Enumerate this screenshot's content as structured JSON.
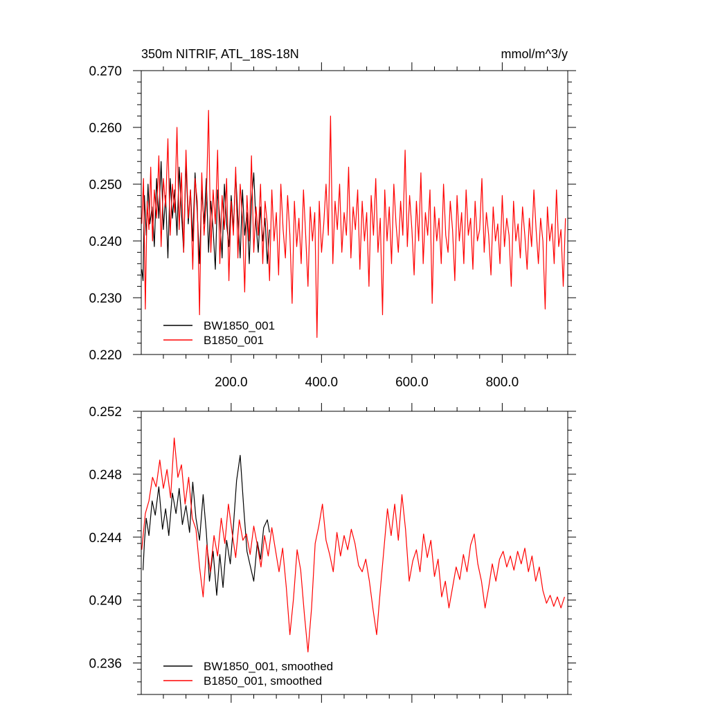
{
  "chart_data": [
    {
      "type": "line",
      "title": "350m NITRIF, ATL_18S-18N",
      "units": "mmol/m^3/y",
      "xlim": [
        1,
        945
      ],
      "ylim": [
        0.22,
        0.27
      ],
      "xticks": [
        200,
        400,
        600,
        800
      ],
      "xtick_labels": [
        "200.0",
        "400.0",
        "600.0",
        "800.0"
      ],
      "yticks": [
        0.22,
        0.23,
        0.24,
        0.25,
        0.26,
        0.27
      ],
      "ytick_labels": [
        "0.220",
        "0.230",
        "0.240",
        "0.250",
        "0.260",
        "0.270"
      ],
      "grid": false,
      "legend_position": "bottom-left",
      "series": [
        {
          "name": "BW1850_001",
          "color": "#000000",
          "x": [
            2,
            5,
            8,
            12,
            16,
            20,
            25,
            30,
            35,
            40,
            45,
            50,
            55,
            60,
            65,
            70,
            75,
            80,
            85,
            90,
            95,
            100,
            105,
            110,
            115,
            120,
            125,
            130,
            135,
            140,
            145,
            150,
            155,
            160,
            165,
            170,
            175,
            180,
            185,
            190,
            195,
            200,
            205,
            210,
            215,
            220,
            225,
            230,
            235,
            240,
            245,
            250,
            255,
            260,
            265,
            270,
            275,
            280,
            285
          ],
          "y": [
            0.235,
            0.233,
            0.248,
            0.241,
            0.25,
            0.243,
            0.246,
            0.239,
            0.251,
            0.244,
            0.254,
            0.242,
            0.248,
            0.237,
            0.251,
            0.244,
            0.249,
            0.241,
            0.253,
            0.245,
            0.238,
            0.254,
            0.243,
            0.249,
            0.24,
            0.252,
            0.245,
            0.236,
            0.249,
            0.243,
            0.251,
            0.238,
            0.247,
            0.242,
            0.235,
            0.249,
            0.244,
            0.237,
            0.25,
            0.243,
            0.239,
            0.248,
            0.242,
            0.252,
            0.244,
            0.237,
            0.249,
            0.241,
            0.245,
            0.236,
            0.247,
            0.252,
            0.243,
            0.238,
            0.246,
            0.24,
            0.244,
            0.236,
            0.242
          ]
        },
        {
          "name": "B1850_001",
          "color": "#ff0000",
          "x": [
            2,
            6,
            10,
            14,
            18,
            22,
            26,
            30,
            35,
            40,
            45,
            50,
            55,
            60,
            65,
            70,
            75,
            80,
            85,
            90,
            95,
            100,
            105,
            110,
            115,
            120,
            125,
            130,
            135,
            140,
            145,
            150,
            155,
            160,
            165,
            170,
            175,
            180,
            185,
            190,
            195,
            200,
            205,
            210,
            215,
            220,
            225,
            230,
            235,
            240,
            245,
            250,
            255,
            260,
            265,
            270,
            275,
            280,
            285,
            290,
            295,
            300,
            305,
            310,
            315,
            320,
            325,
            330,
            335,
            340,
            345,
            350,
            355,
            360,
            365,
            370,
            375,
            380,
            385,
            390,
            395,
            400,
            405,
            410,
            415,
            420,
            425,
            430,
            435,
            440,
            445,
            450,
            455,
            460,
            465,
            470,
            475,
            480,
            485,
            490,
            495,
            500,
            505,
            510,
            515,
            520,
            525,
            530,
            535,
            540,
            545,
            550,
            555,
            560,
            565,
            570,
            575,
            580,
            585,
            590,
            595,
            600,
            605,
            610,
            615,
            620,
            625,
            630,
            635,
            640,
            645,
            650,
            655,
            660,
            665,
            670,
            675,
            680,
            685,
            690,
            695,
            700,
            705,
            710,
            715,
            720,
            725,
            730,
            735,
            740,
            745,
            750,
            755,
            760,
            765,
            770,
            775,
            780,
            785,
            790,
            795,
            800,
            805,
            810,
            815,
            820,
            825,
            830,
            835,
            840,
            845,
            850,
            855,
            860,
            865,
            870,
            875,
            880,
            885,
            890,
            895,
            900,
            905,
            910,
            915,
            920,
            925,
            930,
            935,
            940
          ],
          "y": [
            0.243,
            0.251,
            0.228,
            0.247,
            0.242,
            0.253,
            0.24,
            0.249,
            0.244,
            0.255,
            0.239,
            0.251,
            0.246,
            0.258,
            0.241,
            0.25,
            0.245,
            0.26,
            0.242,
            0.252,
            0.238,
            0.256,
            0.244,
            0.249,
            0.235,
            0.251,
            0.247,
            0.227,
            0.252,
            0.241,
            0.247,
            0.263,
            0.238,
            0.249,
            0.243,
            0.256,
            0.236,
            0.248,
            0.242,
            0.251,
            0.233,
            0.247,
            0.241,
            0.253,
            0.237,
            0.25,
            0.244,
            0.231,
            0.248,
            0.24,
            0.255,
            0.238,
            0.246,
            0.241,
            0.25,
            0.236,
            0.247,
            0.243,
            0.233,
            0.249,
            0.24,
            0.245,
            0.234,
            0.25,
            0.242,
            0.237,
            0.248,
            0.241,
            0.229,
            0.247,
            0.239,
            0.244,
            0.236,
            0.249,
            0.241,
            0.232,
            0.246,
            0.24,
            0.245,
            0.223,
            0.247,
            0.238,
            0.243,
            0.25,
            0.241,
            0.262,
            0.236,
            0.247,
            0.242,
            0.25,
            0.238,
            0.245,
            0.241,
            0.253,
            0.237,
            0.246,
            0.242,
            0.249,
            0.235,
            0.247,
            0.24,
            0.245,
            0.232,
            0.248,
            0.241,
            0.251,
            0.238,
            0.244,
            0.227,
            0.249,
            0.24,
            0.246,
            0.236,
            0.25,
            0.243,
            0.238,
            0.247,
            0.241,
            0.256,
            0.239,
            0.248,
            0.242,
            0.234,
            0.247,
            0.24,
            0.252,
            0.236,
            0.245,
            0.241,
            0.249,
            0.229,
            0.246,
            0.24,
            0.244,
            0.236,
            0.25,
            0.241,
            0.238,
            0.247,
            0.242,
            0.233,
            0.248,
            0.24,
            0.245,
            0.236,
            0.249,
            0.241,
            0.244,
            0.235,
            0.247,
            0.24,
            0.242,
            0.251,
            0.238,
            0.245,
            0.241,
            0.234,
            0.246,
            0.24,
            0.243,
            0.236,
            0.248,
            0.239,
            0.244,
            0.241,
            0.232,
            0.247,
            0.24,
            0.243,
            0.237,
            0.246,
            0.241,
            0.235,
            0.244,
            0.239,
            0.249,
            0.242,
            0.236,
            0.244,
            0.24,
            0.228,
            0.246,
            0.24,
            0.243,
            0.236,
            0.249,
            0.239,
            0.242,
            0.232,
            0.244
          ]
        }
      ]
    },
    {
      "type": "line",
      "title": "",
      "xlim": [
        1,
        945
      ],
      "ylim": [
        0.234,
        0.252
      ],
      "yticks": [
        0.236,
        0.24,
        0.244,
        0.248,
        0.252
      ],
      "ytick_labels": [
        "0.236",
        "0.240",
        "0.244",
        "0.248",
        "0.252"
      ],
      "grid": false,
      "legend_position": "bottom-left",
      "series": [
        {
          "name": "BW1850_001, smoothed",
          "color": "#000000",
          "x": [
            5,
            8,
            12,
            18,
            25,
            32,
            40,
            48,
            55,
            62,
            70,
            78,
            85,
            92,
            100,
            108,
            115,
            122,
            130,
            138,
            145,
            152,
            160,
            168,
            175,
            182,
            190,
            198,
            205,
            212,
            220,
            228,
            235,
            242,
            250,
            258,
            265,
            272,
            280,
            285
          ],
          "y": [
            0.2419,
            0.2437,
            0.2452,
            0.2441,
            0.2463,
            0.2454,
            0.2472,
            0.2445,
            0.2458,
            0.2441,
            0.2468,
            0.2455,
            0.2471,
            0.2448,
            0.246,
            0.2443,
            0.2475,
            0.2452,
            0.2438,
            0.2467,
            0.2443,
            0.2412,
            0.2431,
            0.2403,
            0.2429,
            0.2408,
            0.2438,
            0.2423,
            0.2447,
            0.2476,
            0.2492,
            0.2458,
            0.2431,
            0.2422,
            0.2412,
            0.2437,
            0.2426,
            0.2446,
            0.2451,
            0.2443
          ]
        },
        {
          "name": "B1850_001, smoothed",
          "color": "#ff0000",
          "x": [
            2,
            10,
            18,
            26,
            34,
            42,
            50,
            58,
            66,
            74,
            82,
            90,
            98,
            106,
            114,
            122,
            130,
            138,
            146,
            154,
            162,
            170,
            178,
            186,
            194,
            202,
            210,
            218,
            226,
            234,
            242,
            250,
            258,
            266,
            274,
            282,
            290,
            298,
            306,
            314,
            322,
            330,
            338,
            346,
            354,
            362,
            370,
            378,
            386,
            394,
            402,
            410,
            418,
            426,
            434,
            442,
            450,
            458,
            466,
            474,
            482,
            490,
            498,
            506,
            514,
            522,
            530,
            538,
            546,
            554,
            562,
            570,
            578,
            586,
            594,
            602,
            610,
            618,
            626,
            634,
            642,
            650,
            658,
            666,
            674,
            682,
            690,
            698,
            706,
            714,
            722,
            730,
            738,
            746,
            754,
            762,
            770,
            778,
            786,
            794,
            802,
            810,
            818,
            826,
            834,
            842,
            850,
            858,
            866,
            874,
            882,
            890,
            898,
            906,
            914,
            922,
            930,
            938
          ],
          "y": [
            0.2432,
            0.2455,
            0.2463,
            0.2478,
            0.2472,
            0.2489,
            0.2471,
            0.2483,
            0.2465,
            0.2503,
            0.2478,
            0.2486,
            0.2461,
            0.2478,
            0.2452,
            0.2445,
            0.2421,
            0.2402,
            0.2435,
            0.2418,
            0.2441,
            0.2428,
            0.2452,
            0.2436,
            0.2461,
            0.2443,
            0.2427,
            0.2451,
            0.2438,
            0.2442,
            0.2429,
            0.2447,
            0.2435,
            0.2421,
            0.2441,
            0.2428,
            0.2446,
            0.2432,
            0.2418,
            0.2433,
            0.2408,
            0.2378,
            0.2401,
            0.2432,
            0.2419,
            0.2391,
            0.2367,
            0.2395,
            0.2436,
            0.2447,
            0.2461,
            0.2438,
            0.2429,
            0.2418,
            0.2443,
            0.2428,
            0.2441,
            0.2432,
            0.2445,
            0.2436,
            0.2422,
            0.2418,
            0.2426,
            0.2412,
            0.2394,
            0.2378,
            0.2406,
            0.2432,
            0.2458,
            0.2441,
            0.2461,
            0.2438,
            0.2467,
            0.2445,
            0.2412,
            0.2425,
            0.2432,
            0.2418,
            0.2442,
            0.2427,
            0.2438,
            0.2415,
            0.2426,
            0.2402,
            0.2412,
            0.2395,
            0.2408,
            0.2421,
            0.2413,
            0.2429,
            0.2418,
            0.2435,
            0.2442,
            0.2423,
            0.2412,
            0.2395,
            0.2408,
            0.2423,
            0.2412,
            0.2426,
            0.2431,
            0.2421,
            0.2428,
            0.2419,
            0.2431,
            0.2423,
            0.2433,
            0.2418,
            0.2428,
            0.2412,
            0.2421,
            0.2406,
            0.2398,
            0.2403,
            0.2396,
            0.2402,
            0.2395,
            0.2402
          ]
        }
      ]
    }
  ]
}
